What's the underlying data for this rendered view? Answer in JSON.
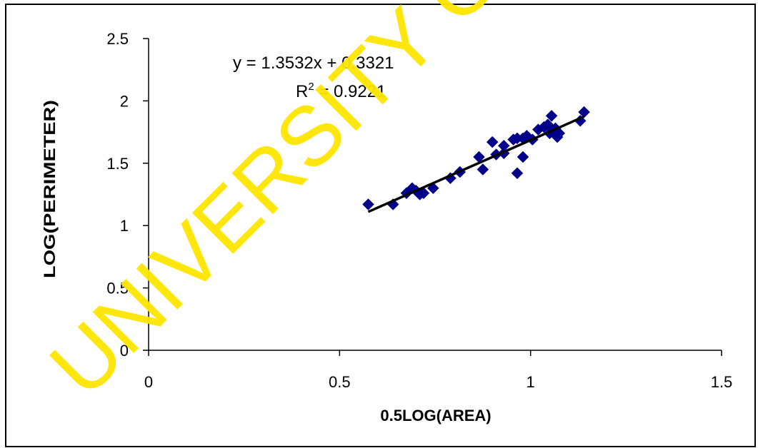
{
  "chart_data": {
    "type": "scatter",
    "title": "",
    "xlabel": "0.5LOG(AREA)",
    "ylabel": "LOG(PERIMETER)",
    "xlim": [
      0,
      1.5
    ],
    "ylim": [
      0,
      2.5
    ],
    "x_ticks": [
      "0",
      "0.5",
      "1",
      "1.5"
    ],
    "y_ticks": [
      "0",
      "0.5",
      "1",
      "1.5",
      "2",
      "2.5"
    ],
    "grid": false,
    "legend": "none",
    "series": [
      {
        "color": "#00008B",
        "marker": "diamond",
        "points": [
          [
            0.575,
            1.17
          ],
          [
            0.64,
            1.17
          ],
          [
            0.675,
            1.26
          ],
          [
            0.69,
            1.3
          ],
          [
            0.7,
            1.28
          ],
          [
            0.71,
            1.25
          ],
          [
            0.72,
            1.26
          ],
          [
            0.745,
            1.3
          ],
          [
            0.79,
            1.38
          ],
          [
            0.815,
            1.43
          ],
          [
            0.865,
            1.55
          ],
          [
            0.875,
            1.45
          ],
          [
            0.9,
            1.67
          ],
          [
            0.91,
            1.57
          ],
          [
            0.93,
            1.58
          ],
          [
            0.93,
            1.64
          ],
          [
            0.955,
            1.69
          ],
          [
            0.965,
            1.7
          ],
          [
            0.965,
            1.42
          ],
          [
            0.98,
            1.55
          ],
          [
            0.98,
            1.7
          ],
          [
            0.99,
            1.72
          ],
          [
            1.005,
            1.69
          ],
          [
            1.02,
            1.77
          ],
          [
            1.035,
            1.79
          ],
          [
            1.045,
            1.81
          ],
          [
            1.05,
            1.74
          ],
          [
            1.055,
            1.88
          ],
          [
            1.065,
            1.78
          ],
          [
            1.07,
            1.71
          ],
          [
            1.075,
            1.74
          ],
          [
            1.13,
            1.84
          ],
          [
            1.14,
            1.91
          ]
        ]
      }
    ],
    "trendline": {
      "slope": 1.3532,
      "intercept": 0.3321,
      "x_range": [
        0.575,
        1.14
      ],
      "color": "#000000",
      "equation_text": "y = 1.3532x + 0.3321",
      "r2_label": "R",
      "r2_superscript": "2",
      "r2_value": " = 0.9221"
    }
  },
  "watermark": {
    "text": "UNIVERSITY OF",
    "color": "#FFE500"
  }
}
